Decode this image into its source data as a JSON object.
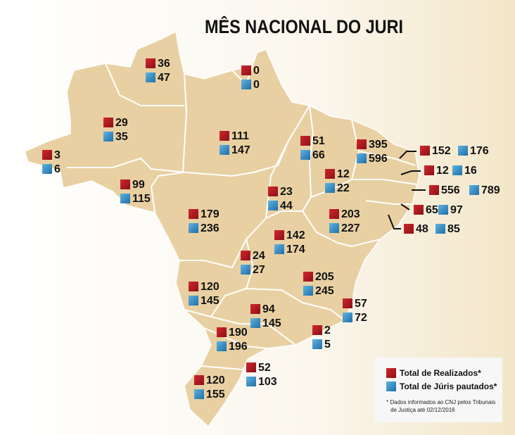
{
  "title": "MÊS NACIONAL DO JURI",
  "states": [
    {
      "realizados": 36,
      "pautados": 47
    },
    {
      "realizados": 0,
      "pautados": 0
    },
    {
      "realizados": 29,
      "pautados": 35
    },
    {
      "realizados": 111,
      "pautados": 147
    },
    {
      "realizados": 51,
      "pautados": 66
    },
    {
      "realizados": 395,
      "pautados": 596
    },
    {
      "realizados": 3,
      "pautados": 6
    },
    {
      "realizados": 99,
      "pautados": 115
    },
    {
      "realizados": 12,
      "pautados": 22
    },
    {
      "realizados": 23,
      "pautados": 44
    },
    {
      "realizados": 179,
      "pautados": 236
    },
    {
      "realizados": 203,
      "pautados": 227
    },
    {
      "realizados": 142,
      "pautados": 174
    },
    {
      "realizados": 24,
      "pautados": 27
    },
    {
      "realizados": 205,
      "pautados": 245
    },
    {
      "realizados": 120,
      "pautados": 145
    },
    {
      "realizados": 94,
      "pautados": 145
    },
    {
      "realizados": 57,
      "pautados": 72
    },
    {
      "realizados": 2,
      "pautados": 5
    },
    {
      "realizados": 190,
      "pautados": 196
    },
    {
      "realizados": 52,
      "pautados": 103
    },
    {
      "realizados": 120,
      "pautados": 155
    },
    {
      "realizados": 152,
      "pautados": 176
    },
    {
      "realizados": 12,
      "pautados": 16
    },
    {
      "realizados": 556,
      "pautados": 789
    },
    {
      "realizados": 65,
      "pautados": 97
    },
    {
      "realizados": 48,
      "pautados": 85
    }
  ],
  "legend": {
    "realizados": "Total de Realizados*",
    "pautados": "Total de Júris pautados*"
  },
  "footnote": [
    "* Dados informados ao CNJ pelos Tribunais",
    "de Justiça até 02/12/2016"
  ]
}
